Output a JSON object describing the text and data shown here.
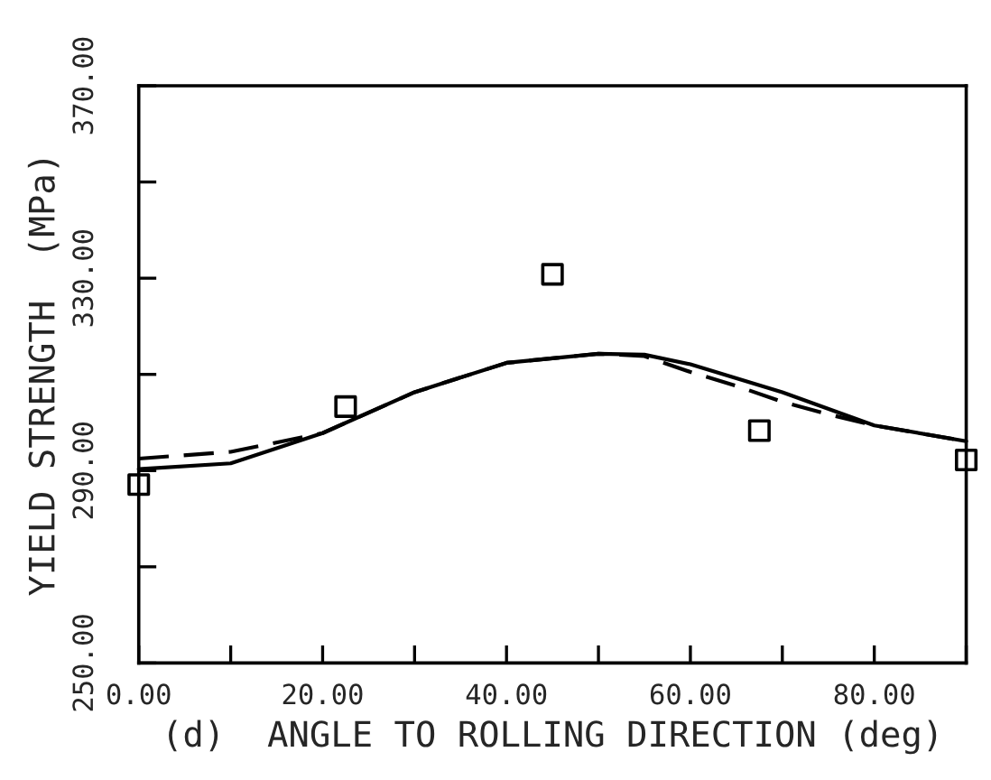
{
  "chart_data": {
    "type": "line",
    "xlabel": "(d)  ANGLE TO ROLLING DIRECTION (deg)",
    "ylabel": "YIELD STRENGTH  (MPa)",
    "xlim": [
      0,
      90
    ],
    "ylim": [
      250,
      370
    ],
    "xticks": [
      {
        "value": 0,
        "label": "0.00"
      },
      {
        "value": 10,
        "label": null
      },
      {
        "value": 20,
        "label": "20.00"
      },
      {
        "value": 30,
        "label": null
      },
      {
        "value": 40,
        "label": "40.00"
      },
      {
        "value": 50,
        "label": null
      },
      {
        "value": 60,
        "label": "60.00"
      },
      {
        "value": 70,
        "label": null
      },
      {
        "value": 80,
        "label": "80.00"
      },
      {
        "value": 90,
        "label": null
      }
    ],
    "yticks": [
      {
        "value": 250,
        "label": "250.00"
      },
      {
        "value": 270,
        "label": null
      },
      {
        "value": 290,
        "label": "290.00"
      },
      {
        "value": 310,
        "label": null
      },
      {
        "value": 330,
        "label": "330.00"
      },
      {
        "value": 350,
        "label": null
      },
      {
        "value": 370,
        "label": "370.00"
      }
    ],
    "grid": false,
    "legend": false,
    "series": [
      {
        "type": "scatter",
        "marker": "square",
        "color": "#000000",
        "x": [
          0,
          22.5,
          45,
          67.5,
          90
        ],
        "values": [
          287.1,
          303.3,
          330.8,
          298.3,
          292.2
        ]
      },
      {
        "line_style": "solid",
        "color": "#000000",
        "x": [
          0,
          10,
          20,
          30,
          40,
          50,
          55,
          60,
          70,
          80,
          90
        ],
        "values": [
          290.3,
          291.5,
          297.8,
          306.3,
          312.4,
          314.3,
          314.1,
          312.1,
          306.3,
          299.4,
          296.1
        ]
      },
      {
        "line_style": "dashed",
        "color": "#000000",
        "x": [
          0,
          10,
          20,
          30,
          40,
          50,
          55,
          60,
          65,
          70,
          75,
          80,
          90
        ],
        "values": [
          292.5,
          293.9,
          297.8,
          306.3,
          312.4,
          314.3,
          313.8,
          310.5,
          307.6,
          304.3,
          301.7,
          299.4,
          296.1
        ]
      }
    ]
  }
}
